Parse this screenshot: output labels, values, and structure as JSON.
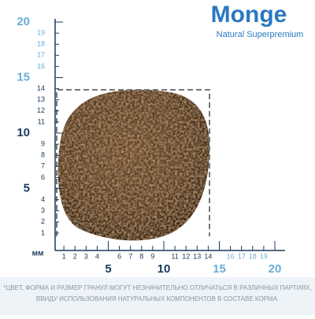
{
  "logo": {
    "brand": "Monge",
    "tagline": "Natural Superpremium"
  },
  "ruler": {
    "unit": "мм",
    "vertical": [
      1,
      2,
      3,
      4,
      5,
      6,
      7,
      8,
      9,
      10,
      11,
      12,
      13,
      14,
      15,
      16,
      17,
      18,
      19,
      20
    ],
    "horizontal": [
      1,
      2,
      3,
      4,
      5,
      6,
      7,
      8,
      9,
      10,
      11,
      12,
      13,
      14,
      15,
      16,
      17,
      18,
      19,
      20
    ]
  },
  "disclaimer": [
    "*ЦВЕТ, ФОРМА И РАЗМЕР ГРАНУЛ МОГУТ НЕЗНАЧИТЕЛЬНО ОТЛИЧАТЬСЯ В РАЗЛИЧНЫХ ПАРТИЯХ,",
    "ВВИДУ ИСПОЛЬЗОВАНИЯ НАТУРАЛЬНЫХ КОМПОНЕНТОВ В СОСТАВЕ КОРМА."
  ]
}
